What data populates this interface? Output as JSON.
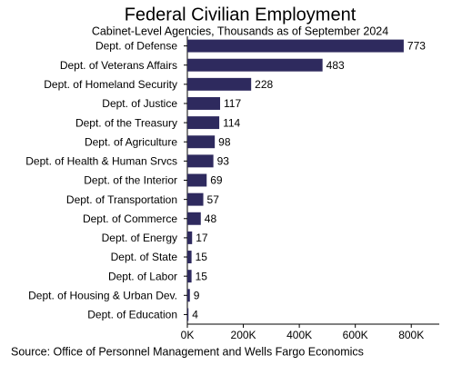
{
  "chart_data": {
    "type": "bar",
    "orientation": "horizontal",
    "title": "Federal Civilian Employment",
    "subtitle": "Cabinet-Level Agencies, Thousands as of September 2024",
    "source": "Source: Office of Personnel Management and Wells Fargo Economics",
    "categories": [
      "Dept. of Defense",
      "Dept. of Veterans Affairs",
      "Dept. of Homeland Security",
      "Dept. of Justice",
      "Dept. of the Treasury",
      "Dept. of Agriculture",
      "Dept. of Health & Human Srvcs",
      "Dept. of the Interior",
      "Dept. of Transportation",
      "Dept. of Commerce",
      "Dept. of Energy",
      "Dept. of State",
      "Dept. of Labor",
      "Dept. of Housing & Urban Dev.",
      "Dept. of Education"
    ],
    "values": [
      773,
      483,
      228,
      117,
      114,
      98,
      93,
      69,
      57,
      48,
      17,
      15,
      15,
      9,
      4
    ],
    "color": "#2e2a5e",
    "xlim": [
      0,
      900
    ],
    "xticks": [
      {
        "value": 0,
        "label": "0K"
      },
      {
        "value": 200,
        "label": "200K"
      },
      {
        "value": 400,
        "label": "400K"
      },
      {
        "value": 600,
        "label": "600K"
      },
      {
        "value": 800,
        "label": "800K"
      }
    ],
    "grid": false
  }
}
